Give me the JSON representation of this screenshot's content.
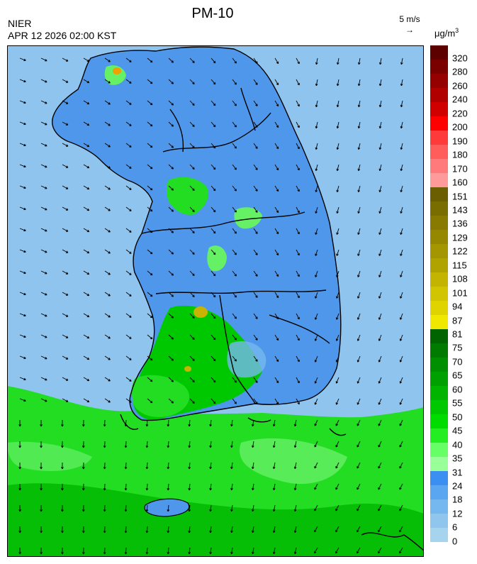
{
  "header": {
    "title": "PM-10",
    "agency": "NIER",
    "datetime": "APR 12 2026 02:00 KST",
    "wind_reference": "5 m/s",
    "unit_base": "μg/m",
    "unit_exp": "3"
  },
  "legend": {
    "labels": [
      "320",
      "280",
      "260",
      "240",
      "220",
      "200",
      "190",
      "180",
      "170",
      "160",
      "151",
      "143",
      "136",
      "129",
      "122",
      "115",
      "108",
      "101",
      "94",
      "87",
      "81",
      "75",
      "70",
      "65",
      "60",
      "55",
      "50",
      "45",
      "40",
      "35",
      "31",
      "24",
      "18",
      "12",
      "6",
      "0"
    ],
    "colors": [
      "#5c0000",
      "#7a0000",
      "#950000",
      "#b00000",
      "#d10000",
      "#ff0000",
      "#ff3a3a",
      "#ff5c5c",
      "#ff7a7a",
      "#ff9a9a",
      "#6b5e00",
      "#7a6d00",
      "#887a00",
      "#958800",
      "#a39600",
      "#b0a300",
      "#c2b400",
      "#d1c400",
      "#e0d400",
      "#f0e800",
      "#006400",
      "#007a00",
      "#008f00",
      "#00a000",
      "#00b400",
      "#00c800",
      "#00dc00",
      "#22ee22",
      "#66ff66",
      "#99ff99",
      "#3a8ff0",
      "#5aa6f0",
      "#75b8f0",
      "#90c6ee",
      "#a6d3ee"
    ]
  },
  "map_colors": {
    "sea_blue": "#8fc4ee",
    "land_blue": "#4f97ea",
    "green_dark": "#00b800",
    "green_mid": "#22dd22",
    "green_light": "#66f066",
    "yellow": "#c8b400",
    "orange": "#f0a000",
    "coast": "#000000"
  }
}
